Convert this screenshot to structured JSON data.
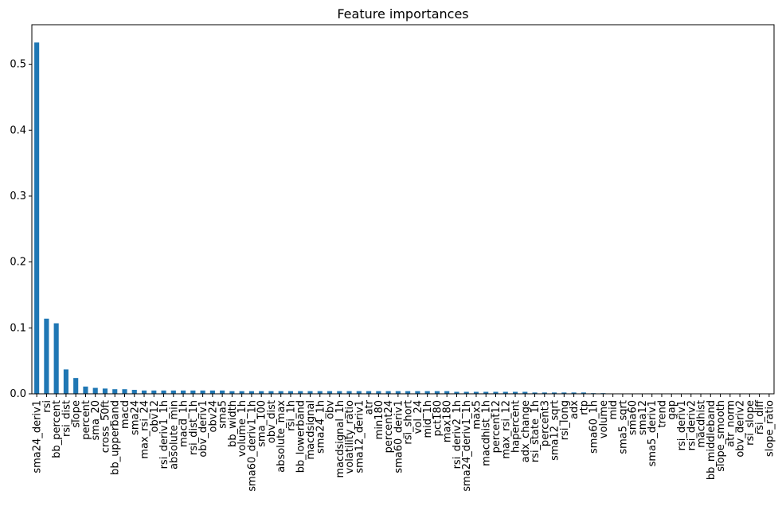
{
  "chart_data": {
    "type": "bar",
    "title": "Feature importances",
    "xlabel": "",
    "ylabel": "",
    "ylim": [
      0,
      0.56
    ],
    "yticks": [
      0.0,
      0.1,
      0.2,
      0.3,
      0.4,
      0.5
    ],
    "ytick_labels": [
      "0.0",
      "0.1",
      "0.2",
      "0.3",
      "0.4",
      "0.5"
    ],
    "grid": false,
    "legend": "none",
    "bar_color": "#1f77b4",
    "categories": [
      "sma24_deriv1",
      "rsi",
      "bb_percent",
      "rsi_dist",
      "slope",
      "percent",
      "sma_20",
      "cross_50ft",
      "bb_upperband",
      "macd",
      "sma24",
      "max_rsi_24",
      "obv12",
      "rsi_deriv1_1h",
      "absolute_min",
      "macd_1h",
      "rsi_dist_1h",
      "obv_deriv1",
      "obv24",
      "sma5",
      "bb_width",
      "volume_1h",
      "sma60_deriv1_1h",
      "sma_100",
      "obv_dist",
      "absolute_max",
      "rsi_1h",
      "bb_lowerband",
      "macdsignal",
      "sma24_1h",
      "obv",
      "macdsignal_1h",
      "volatility_ratio",
      "sma12_deriv1",
      "atr",
      "min180",
      "percent24",
      "sma60_deriv1",
      "rsi_short",
      "vol_24",
      "mid_1h",
      "pct180",
      "max180",
      "rsi_deriv2_1h",
      "sma24_deriv1_1h",
      "max5",
      "macdhist_1h",
      "percent12",
      "max_rsi_12",
      "hapercent",
      "adx_change",
      "rsi_state_1h",
      "percent3",
      "sma12_sqrt",
      "rsi_long",
      "adx",
      "rtp",
      "sma60_1h",
      "volume",
      "mid",
      "sma5_sqrt",
      "sma60",
      "sma12",
      "sma5_deriv1",
      "trend",
      "gap",
      "rsi_deriv1",
      "rsi_deriv2",
      "macdhist",
      "bb_middleband",
      "slope_smooth",
      "atr_norm",
      "obv_deriv2",
      "rsi_slope",
      "rsi_diff",
      "slope_ratio"
    ],
    "values": [
      0.533,
      0.114,
      0.107,
      0.037,
      0.024,
      0.011,
      0.009,
      0.008,
      0.007,
      0.007,
      0.006,
      0.005,
      0.005,
      0.005,
      0.005,
      0.005,
      0.005,
      0.005,
      0.005,
      0.005,
      0.004,
      0.004,
      0.004,
      0.004,
      0.004,
      0.004,
      0.004,
      0.004,
      0.004,
      0.004,
      0.004,
      0.004,
      0.004,
      0.004,
      0.004,
      0.004,
      0.004,
      0.004,
      0.004,
      0.004,
      0.004,
      0.004,
      0.004,
      0.003,
      0.003,
      0.003,
      0.003,
      0.003,
      0.003,
      0.003,
      0.003,
      0.002,
      0.002,
      0.002,
      0.002,
      0.002,
      0.002,
      0.001,
      0.001,
      0.0005,
      0,
      0,
      0,
      0,
      0,
      0,
      0,
      0,
      0,
      0,
      0,
      0,
      0,
      0,
      0,
      0
    ]
  }
}
